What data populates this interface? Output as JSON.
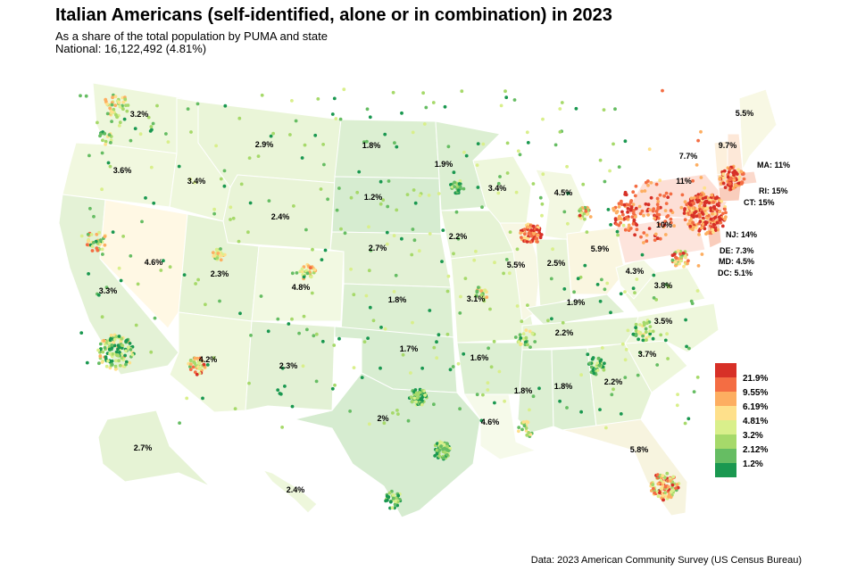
{
  "title": "Italian Americans (self-identified, alone or in combination) in 2023",
  "subtitle": "As a share of the total population by PUMA and state",
  "national": "National: 16,122,492 (4.81%)",
  "source": "Data: 2023 American Community Survey (US Census Bureau)",
  "colors": {
    "lowest": "#1a9850",
    "highest": "#d73027",
    "mid": "#fee08b"
  },
  "legend": {
    "bins": [
      {
        "label": "21.9%",
        "color": "#d73027"
      },
      {
        "label": "9.55%",
        "color": "#f46d43"
      },
      {
        "label": "6.19%",
        "color": "#fdae61"
      },
      {
        "label": "4.81%",
        "color": "#fee08b"
      },
      {
        "label": "3.2%",
        "color": "#d9ef8b"
      },
      {
        "label": "2.12%",
        "color": "#a6d96a"
      },
      {
        "label": "1.2%",
        "color": "#66bd63"
      },
      {
        "label": "",
        "color": "#1a9850"
      }
    ]
  },
  "states": [
    {
      "name": "WA",
      "value": "3.2%"
    },
    {
      "name": "OR",
      "value": "3.6%"
    },
    {
      "name": "CA",
      "value": "3.3%"
    },
    {
      "name": "NV",
      "value": "4.6%"
    },
    {
      "name": "ID",
      "value": "3.4%"
    },
    {
      "name": "MT",
      "value": "2.9%"
    },
    {
      "name": "WY",
      "value": "2.4%"
    },
    {
      "name": "UT",
      "value": "2.3%"
    },
    {
      "name": "CO",
      "value": "4.8%"
    },
    {
      "name": "AZ",
      "value": "4.2%"
    },
    {
      "name": "NM",
      "value": "2.3%"
    },
    {
      "name": "ND",
      "value": "1.8%"
    },
    {
      "name": "SD",
      "value": "1.2%"
    },
    {
      "name": "NE",
      "value": "2.7%"
    },
    {
      "name": "KS",
      "value": "1.8%"
    },
    {
      "name": "OK",
      "value": "1.7%"
    },
    {
      "name": "TX",
      "value": "2%"
    },
    {
      "name": "MN",
      "value": "1.9%"
    },
    {
      "name": "IA",
      "value": "2.2%"
    },
    {
      "name": "MO",
      "value": "3.1%"
    },
    {
      "name": "AR",
      "value": "1.6%"
    },
    {
      "name": "LA",
      "value": "4.6%"
    },
    {
      "name": "WI",
      "value": "3.4%"
    },
    {
      "name": "IL",
      "value": "5.5%"
    },
    {
      "name": "MI",
      "value": "4.5%"
    },
    {
      "name": "IN",
      "value": "2.5%"
    },
    {
      "name": "OH",
      "value": "5.9%"
    },
    {
      "name": "KY",
      "value": "1.9%"
    },
    {
      "name": "TN",
      "value": "2.2%"
    },
    {
      "name": "MS",
      "value": "1.8%"
    },
    {
      "name": "AL",
      "value": "1.8%"
    },
    {
      "name": "GA",
      "value": "2.2%"
    },
    {
      "name": "FL",
      "value": "5.8%"
    },
    {
      "name": "SC",
      "value": "3.7%"
    },
    {
      "name": "NC",
      "value": "3.5%"
    },
    {
      "name": "VA",
      "value": "3.8%"
    },
    {
      "name": "WV",
      "value": "4.3%"
    },
    {
      "name": "PA",
      "value": "10%"
    },
    {
      "name": "NY",
      "value": "11%"
    },
    {
      "name": "VT",
      "value": "7.7%"
    },
    {
      "name": "NH",
      "value": "9.7%"
    },
    {
      "name": "ME",
      "value": "5.5%"
    },
    {
      "name": "AK",
      "value": "2.7%"
    },
    {
      "name": "HI",
      "value": "2.4%"
    },
    {
      "name": "MA",
      "value": "MA: 11%"
    },
    {
      "name": "RI",
      "value": "RI: 15%"
    },
    {
      "name": "CT",
      "value": "CT: 15%"
    },
    {
      "name": "NJ",
      "value": "NJ: 14%"
    },
    {
      "name": "DE",
      "value": "DE: 7.3%"
    },
    {
      "name": "MD",
      "value": "MD: 4.5%"
    },
    {
      "name": "DC",
      "value": "DC: 5.1%"
    }
  ]
}
